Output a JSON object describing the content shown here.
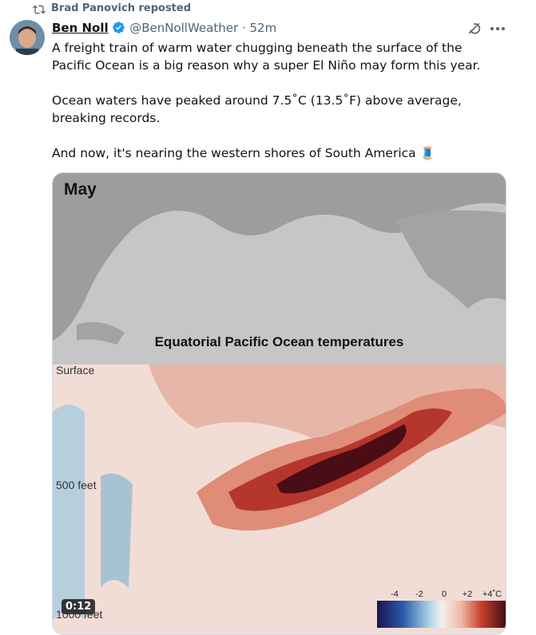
{
  "repost": {
    "text": "Brad Panovich reposted"
  },
  "post": {
    "author": "Ben Noll",
    "handle": "@BenNollWeather",
    "separator": "·",
    "time": "52m",
    "paragraphs": [
      "A freight train of warm water chugging beneath the surface of the Pacific Ocean is a big reason why a super El Niño may form this year.",
      "Ocean waters have peaked around 7.5˚C (13.5˚F) above average, breaking records.",
      "And now, it's nearing the western shores of South America 🧵"
    ]
  },
  "media": {
    "label": "May",
    "title": "Equatorial Pacific Ocean temperatures",
    "depth_labels": [
      "Surface",
      "500 feet",
      "1000 feet"
    ],
    "video_time": "0:12",
    "colorbar_labels": [
      "-4",
      "-2",
      "0",
      "+2",
      "+4˚C"
    ]
  }
}
